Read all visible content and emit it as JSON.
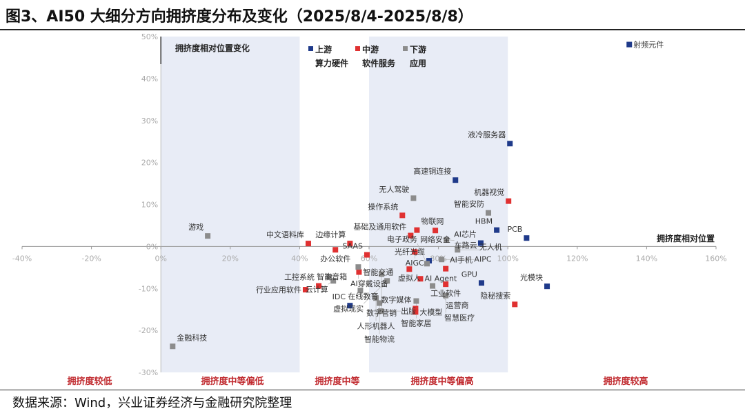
{
  "title": "图3、AI50 大细分方向拥挤度分布及变化（2025/8/4-2025/8/8）",
  "source": "数据来源：Wind，兴业证券经济与金融研究院整理",
  "colors": {
    "upstream": "#1f3a8a",
    "midstream": "#e03131",
    "downstream": "#8c8c8c",
    "band": "#e8ecf6",
    "zone_text": "#c0282d"
  },
  "chart_data": {
    "type": "scatter",
    "title": "拥挤度相对位置变化",
    "xlabel": "拥挤度相对位置",
    "ylabel": "拥挤度相对位置变化",
    "xlim": [
      -40,
      160
    ],
    "ylim": [
      -30,
      50
    ],
    "x_ticks": [
      "-40%",
      "-20%",
      "0%",
      "20%",
      "40%",
      "60%",
      "80%",
      "100%",
      "120%",
      "140%",
      "160%"
    ],
    "y_ticks": [
      "50%",
      "40%",
      "30%",
      "20%",
      "10%",
      "0%",
      "-10%",
      "-20%",
      "-30%"
    ],
    "zones": [
      "拥挤度较低",
      "拥挤度中等偏低",
      "拥挤度中等",
      "拥挤度中等偏高",
      "拥挤度较高"
    ],
    "legend": [
      {
        "name": "上游",
        "sub": "算力硬件",
        "key": "upstream"
      },
      {
        "name": "中游",
        "sub": "软件服务",
        "key": "midstream"
      },
      {
        "name": "下游",
        "sub": "应用",
        "key": "downstream"
      }
    ],
    "series": [
      {
        "name": "上游",
        "key": "upstream",
        "points": [
          {
            "label": "射频元件",
            "x": 135.0,
            "y": 48.1
          },
          {
            "label": "液冷服务器",
            "x": 100.6,
            "y": 24.5
          },
          {
            "label": "高速铜连接",
            "x": 84.9,
            "y": 15.8
          },
          {
            "label": "HBM",
            "x": 96.8,
            "y": 3.9
          },
          {
            "label": "AI芯片",
            "x": 92.2,
            "y": 0.8
          },
          {
            "label": "PCB",
            "x": 105.4,
            "y": 2.0
          },
          {
            "label": "光模块",
            "x": 111.3,
            "y": -9.5
          },
          {
            "label": "GPU",
            "x": 92.4,
            "y": -8.7
          },
          {
            "label": "光纤光缆",
            "x": 77.3,
            "y": -3.4
          },
          {
            "label": "IDC",
            "x": 54.5,
            "y": -14.1
          }
        ]
      },
      {
        "name": "中游",
        "key": "midstream",
        "points": [
          {
            "label": "中文语料库",
            "x": 42.5,
            "y": 0.7
          },
          {
            "label": "边缘计算",
            "x": 54.5,
            "y": 0.7
          },
          {
            "label": "基础及通用软件",
            "x": 72.0,
            "y": 2.6
          },
          {
            "label": "物联网",
            "x": 73.8,
            "y": 3.9
          },
          {
            "label": "网络安全",
            "x": 79.1,
            "y": 3.8
          },
          {
            "label": "操作系统",
            "x": 69.6,
            "y": 7.4
          },
          {
            "label": "机器视觉",
            "x": 100.2,
            "y": 10.8
          },
          {
            "label": "办公软件",
            "x": 50.3,
            "y": -0.8
          },
          {
            "label": "SAAS",
            "x": 59.4,
            "y": -2.0
          },
          {
            "label": "AIGC",
            "x": 73.2,
            "y": -1.3
          },
          {
            "label": "智能交通",
            "x": 57.1,
            "y": -6.1
          },
          {
            "label": "虚拟人",
            "x": 71.6,
            "y": -5.4
          },
          {
            "label": "AI手机",
            "x": 82.1,
            "y": -5.3
          },
          {
            "label": "AI Agent",
            "x": 74.8,
            "y": -7.7
          },
          {
            "label": "工业软件",
            "x": 82.1,
            "y": -9.0
          },
          {
            "label": "工控系统",
            "x": 45.5,
            "y": -9.4
          },
          {
            "label": "行业应用软件",
            "x": 41.7,
            "y": -10.3
          },
          {
            "label": "数字媒体",
            "x": 73.4,
            "y": -14.8
          },
          {
            "label": "大模型",
            "x": 73.4,
            "y": -15.6
          },
          {
            "label": "隐秘搜索",
            "x": 102.0,
            "y": -13.8
          }
        ]
      },
      {
        "name": "下游",
        "key": "downstream",
        "points": [
          {
            "label": "游戏",
            "x": 13.5,
            "y": 2.5
          },
          {
            "label": "金融科技",
            "x": 3.4,
            "y": -23.8
          },
          {
            "label": "无人驾驶",
            "x": 72.8,
            "y": 11.5
          },
          {
            "label": "智能安防",
            "x": 94.4,
            "y": 8.0
          },
          {
            "label": "车路云",
            "x": 82.3,
            "y": 1.6
          },
          {
            "label": "无人机",
            "x": 85.5,
            "y": -0.8
          },
          {
            "label": "电子政务",
            "x": 76.7,
            "y": -4.1
          },
          {
            "label": "AIPC",
            "x": 80.9,
            "y": -3.1
          },
          {
            "label": "智能音箱",
            "x": 48.5,
            "y": -7.2
          },
          {
            "label": "AI穿戴设备",
            "x": 56.9,
            "y": -4.9
          },
          {
            "label": "数字营销",
            "x": 63.6,
            "y": -6.6
          },
          {
            "label": "云计算",
            "x": 49.7,
            "y": -8.2
          },
          {
            "label": "虚拟现实",
            "x": 65.2,
            "y": -8.2
          },
          {
            "label": "在线教育",
            "x": 57.5,
            "y": -10.5
          },
          {
            "label": "运营商",
            "x": 78.3,
            "y": -9.4
          },
          {
            "label": "智能家居",
            "x": 73.6,
            "y": -13.0
          },
          {
            "label": "智慧医疗",
            "x": 82.1,
            "y": -11.7
          },
          {
            "label": "人形机器人",
            "x": 62.0,
            "y": -12.3
          },
          {
            "label": "智能物流",
            "x": 63.0,
            "y": -13.5
          },
          {
            "label": "出版",
            "x": 63.4,
            "y": -15.4
          }
        ]
      }
    ]
  }
}
